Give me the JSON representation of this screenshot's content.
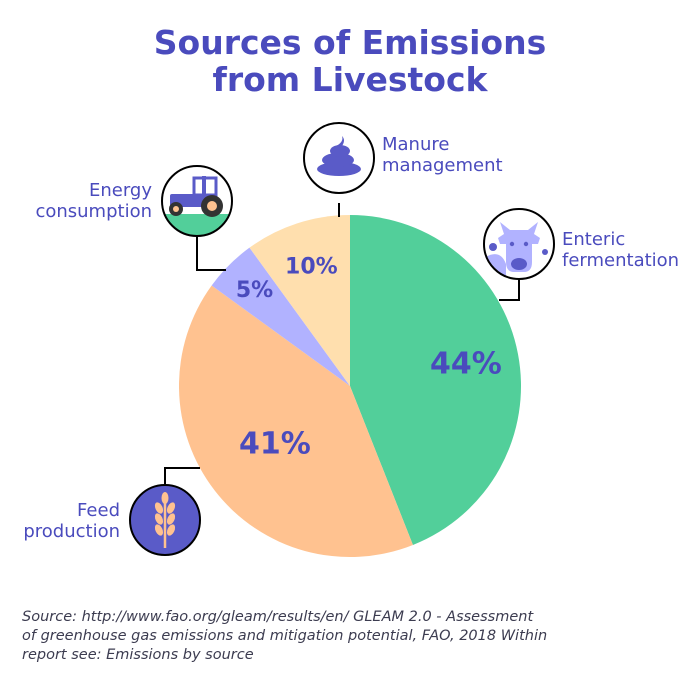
{
  "title": {
    "line1": "Sources of Emissions",
    "line2": "from Livestock"
  },
  "labels": {
    "manure": [
      "Manure",
      "management"
    ],
    "energy": [
      "Energy",
      "consumption"
    ],
    "enteric": [
      "Enteric",
      "fermentation"
    ],
    "feed": [
      "Feed",
      "production"
    ]
  },
  "source": {
    "line1": "Source: http://www.fao.org/gleam/results/en/ GLEAM 2.0 - Assessment",
    "line2": "of greenhouse gas emissions and mitigation potential, FAO, 2018 Within",
    "line3": "report see: Emissions by source"
  },
  "colors": {
    "title": "#4a4bbd",
    "enteric": "#52cf9a",
    "feed": "#ffc290",
    "energy": "#b1b2ff",
    "manure": "#ffdfae",
    "icon_purple": "#5a5bc8"
  },
  "icons": [
    "poop-icon",
    "tractor-icon",
    "cow-icon",
    "wheat-icon"
  ],
  "chart_data": {
    "type": "pie",
    "title": "Sources of Emissions from Livestock",
    "categories": [
      "Enteric fermentation",
      "Feed production",
      "Energy consumption",
      "Manure management"
    ],
    "values": [
      44,
      41,
      5,
      10
    ],
    "value_labels": [
      "44%",
      "41%",
      "5%",
      "10%"
    ],
    "start": "top, clockwise"
  }
}
